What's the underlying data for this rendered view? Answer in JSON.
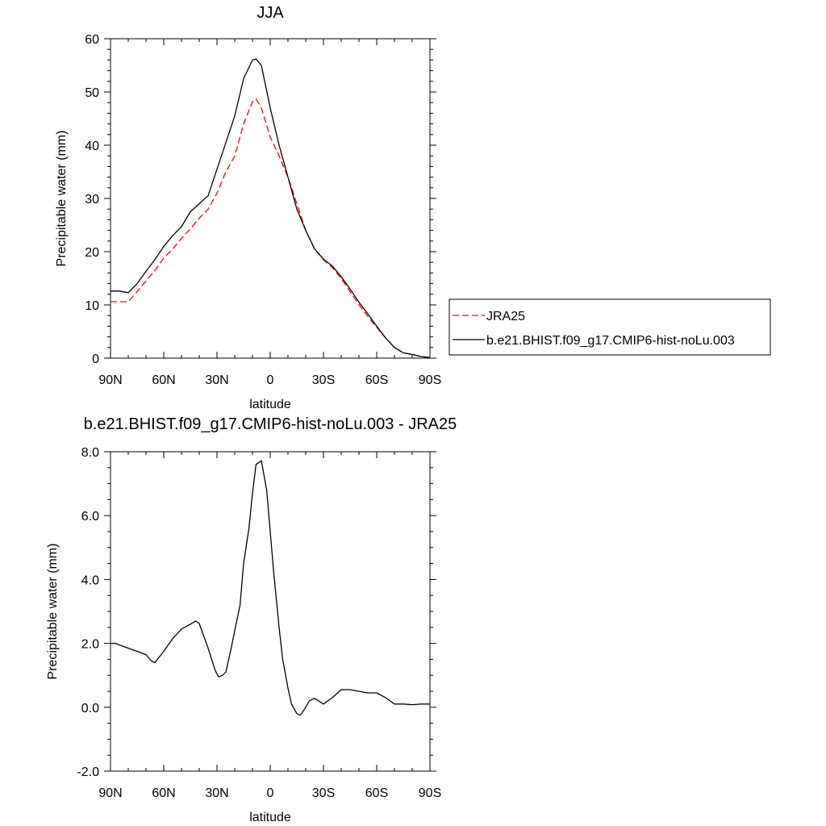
{
  "chart_data": [
    {
      "type": "line",
      "title": "JJA",
      "xlabel": "latitude",
      "ylabel": "Precipitable water (mm)",
      "xlim": [
        90,
        -90
      ],
      "ylim": [
        0,
        60
      ],
      "xticks": [
        90,
        60,
        30,
        0,
        -30,
        -60,
        -90
      ],
      "xtick_labels": [
        "90N",
        "60N",
        "30N",
        "0",
        "30S",
        "60S",
        "90S"
      ],
      "yticks": [
        0,
        10,
        20,
        30,
        40,
        50,
        60
      ],
      "ytick_labels": [
        "0",
        "10",
        "20",
        "30",
        "40",
        "50",
        "60"
      ],
      "grid": false,
      "legend_position": "right",
      "series": [
        {
          "name": "JRA25",
          "color": "#ff0000",
          "dash": "dashed",
          "x": [
            90,
            85,
            80,
            75,
            70,
            65,
            60,
            55,
            50,
            45,
            40,
            35,
            30,
            25,
            20,
            15,
            10,
            8,
            5,
            0,
            -5,
            -10,
            -15,
            -20,
            -25,
            -30,
            -35,
            -40,
            -45,
            -50,
            -55,
            -60,
            -65,
            -70,
            -75,
            -80,
            -85,
            -90
          ],
          "values": [
            10.6,
            10.6,
            10.6,
            12.5,
            14.5,
            16.5,
            18.8,
            20.5,
            22.5,
            24.3,
            26.3,
            28.0,
            31.0,
            35.0,
            38.0,
            44.0,
            48.2,
            48.7,
            47.0,
            41.5,
            38.0,
            34.0,
            29.0,
            24.0,
            20.5,
            18.5,
            17.0,
            15.0,
            12.5,
            10.0,
            7.8,
            5.8,
            3.8,
            2.0,
            1.0,
            0.7,
            0.3,
            0.1
          ]
        },
        {
          "name": "b.e21.BHIST.f09_g17.CMIP6-hist-noLu.003",
          "color": "#000000",
          "dash": "solid",
          "x": [
            90,
            85,
            80,
            75,
            70,
            65,
            60,
            55,
            50,
            45,
            40,
            35,
            30,
            25,
            20,
            15,
            10,
            8,
            5,
            0,
            -5,
            -10,
            -15,
            -20,
            -25,
            -30,
            -35,
            -40,
            -45,
            -50,
            -55,
            -60,
            -65,
            -70,
            -75,
            -80,
            -85,
            -90
          ],
          "values": [
            12.6,
            12.6,
            12.3,
            14.0,
            16.3,
            18.5,
            21.0,
            23.0,
            24.7,
            27.5,
            29.0,
            30.5,
            35.5,
            40.5,
            45.5,
            52.5,
            56.0,
            56.2,
            55.0,
            47.0,
            40.0,
            34.0,
            28.0,
            24.0,
            20.5,
            18.6,
            17.3,
            15.3,
            13.0,
            10.5,
            8.3,
            6.0,
            3.8,
            2.0,
            1.0,
            0.7,
            0.3,
            0.1
          ]
        }
      ]
    },
    {
      "type": "line",
      "title": "b.e21.BHIST.f09_g17.CMIP6-hist-noLu.003 - JRA25",
      "xlabel": "latitude",
      "ylabel": "Precipitable water (mm)",
      "xlim": [
        90,
        -90
      ],
      "ylim": [
        -2.0,
        8.0
      ],
      "xticks": [
        90,
        60,
        30,
        0,
        -30,
        -60,
        -90
      ],
      "xtick_labels": [
        "90N",
        "60N",
        "30N",
        "0",
        "30S",
        "60S",
        "90S"
      ],
      "yticks": [
        -2.0,
        0.0,
        2.0,
        4.0,
        6.0,
        8.0
      ],
      "ytick_labels": [
        "-2.0",
        "0.0",
        "2.0",
        "4.0",
        "6.0",
        "8.0"
      ],
      "grid": false,
      "series": [
        {
          "name": "",
          "color": "#000000",
          "dash": "solid",
          "x": [
            90,
            87,
            85,
            80,
            75,
            70,
            67,
            65,
            60,
            55,
            50,
            45,
            42,
            40,
            35,
            31,
            29,
            27,
            25,
            22,
            20,
            17,
            15,
            12,
            10,
            8,
            5,
            2,
            0,
            -2,
            -5,
            -7,
            -10,
            -12,
            -15,
            -17,
            -20,
            -22,
            -25,
            -30,
            -35,
            -40,
            -45,
            -50,
            -55,
            -60,
            -65,
            -70,
            -75,
            -80,
            -85,
            -90
          ],
          "values": [
            2.0,
            2.0,
            1.95,
            1.85,
            1.75,
            1.65,
            1.45,
            1.4,
            1.75,
            2.15,
            2.45,
            2.6,
            2.7,
            2.62,
            1.85,
            1.15,
            0.95,
            1.0,
            1.1,
            1.85,
            2.4,
            3.2,
            4.5,
            5.6,
            6.7,
            7.6,
            7.72,
            6.8,
            5.5,
            4.2,
            2.5,
            1.5,
            0.6,
            0.1,
            -0.2,
            -0.25,
            0.0,
            0.2,
            0.28,
            0.1,
            0.3,
            0.55,
            0.55,
            0.5,
            0.45,
            0.45,
            0.3,
            0.1,
            0.1,
            0.08,
            0.1,
            0.1
          ]
        }
      ]
    }
  ]
}
